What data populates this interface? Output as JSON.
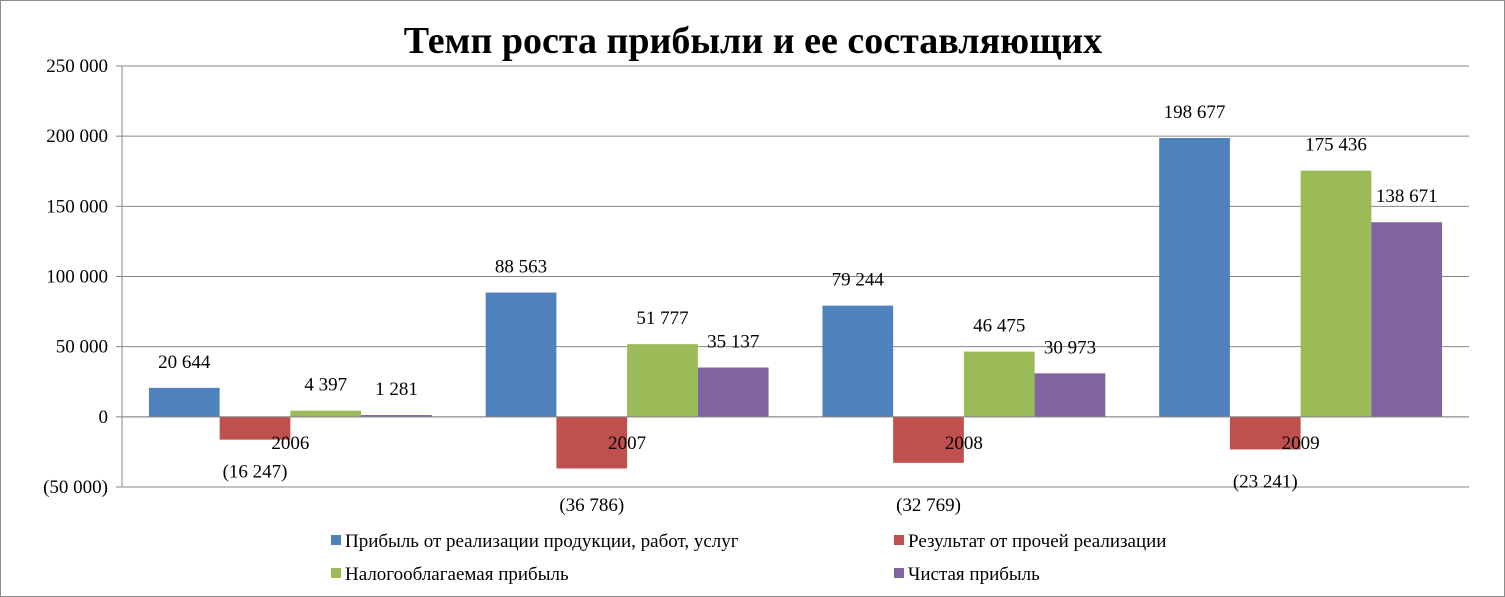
{
  "chart_data": {
    "type": "bar",
    "title": "Темп роста прибыли и ее составляющих",
    "categories": [
      "2006",
      "2007",
      "2008",
      "2009"
    ],
    "ylim": [
      -50000,
      250000
    ],
    "yticks": [
      -50000,
      0,
      50000,
      100000,
      150000,
      200000,
      250000
    ],
    "ytick_labels": [
      "(50 000)",
      "0",
      "50 000",
      "100 000",
      "150 000",
      "200 000",
      "250 000"
    ],
    "grid": true,
    "legend_position": "bottom",
    "series": [
      {
        "name": "Прибыль от реализации продукции, работ, услуг",
        "color": "#4F81BD",
        "values": [
          20644,
          88563,
          79244,
          198677
        ],
        "labels": [
          "20 644",
          "88 563",
          "79 244",
          "198 677"
        ]
      },
      {
        "name": "Результат от прочей реализации",
        "color": "#C0504D",
        "values": [
          -16247,
          -36786,
          -32769,
          -23241
        ],
        "labels": [
          "(16 247)",
          "(36 786)",
          "(32 769)",
          "(23 241)"
        ]
      },
      {
        "name": "Налогооблагаемая прибыль",
        "color": "#9BBB59",
        "values": [
          4397,
          51777,
          46475,
          175436
        ],
        "labels": [
          "4 397",
          "51 777",
          "46 475",
          "175 436"
        ]
      },
      {
        "name": "Чистая прибыль",
        "color": "#8064A2",
        "values": [
          1281,
          35137,
          30973,
          138671
        ],
        "labels": [
          "1 281",
          "35 137",
          "30 973",
          "138 671"
        ]
      }
    ]
  }
}
